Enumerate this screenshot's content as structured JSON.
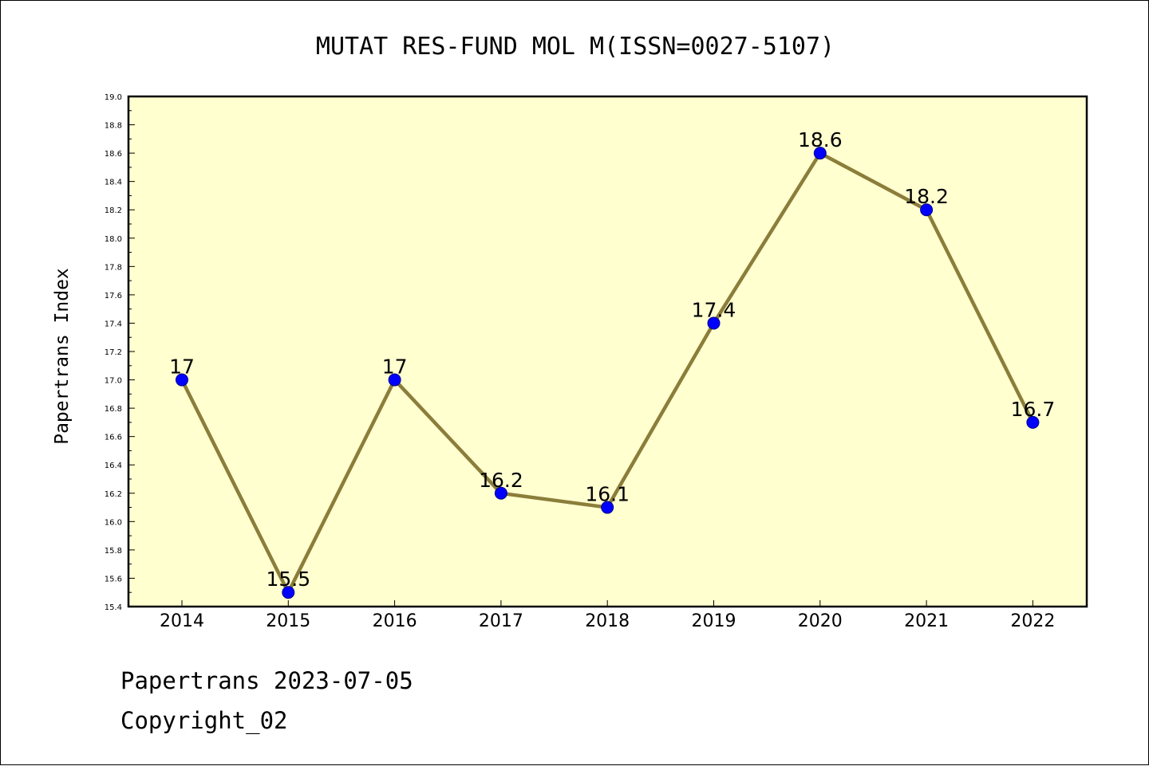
{
  "chart_data": {
    "type": "line",
    "title": "MUTAT RES-FUND MOL M(ISSN=0027-5107)",
    "xlabel": "",
    "ylabel": "Papertrans Index",
    "x": [
      "2014",
      "2015",
      "2016",
      "2017",
      "2018",
      "2019",
      "2020",
      "2021",
      "2022"
    ],
    "series": [
      {
        "values": [
          17,
          15.5,
          17,
          16.2,
          16.1,
          17.4,
          18.6,
          18.2,
          16.7
        ],
        "labels": [
          "17",
          "15.5",
          "17",
          "16.2",
          "16.1",
          "17.4",
          "18.6",
          "18.2",
          "16.7"
        ]
      }
    ],
    "ylim": [
      15.4,
      19.0
    ],
    "yticks": [
      "15.4",
      "15.6",
      "15.8",
      "16.0",
      "16.2",
      "16.4",
      "16.6",
      "16.8",
      "17.0",
      "17.2",
      "17.4",
      "17.6",
      "17.8",
      "18.0",
      "18.2",
      "18.4",
      "18.6",
      "18.8",
      "19.0"
    ],
    "grid": false,
    "legend": "none",
    "colors": {
      "plot_background": "#ffffd0",
      "line": "#8b7d3a",
      "marker": "#0000ff"
    }
  },
  "footer": {
    "date_line": "Papertrans 2023-07-05",
    "copyright": "Copyright_02"
  }
}
